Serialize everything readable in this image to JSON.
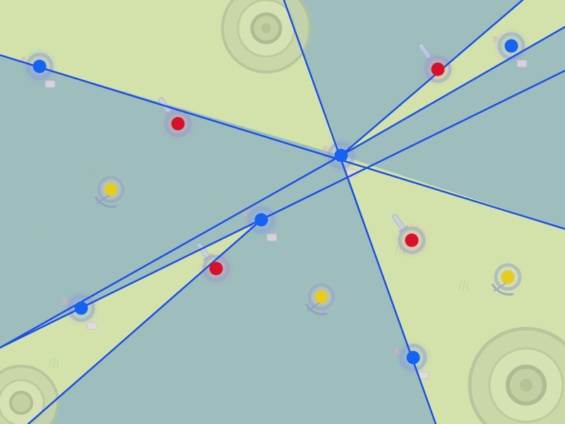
{
  "game": {
    "colors": {
      "light_zone": "#d3e2aa",
      "dark_zone": "#9ebdbd",
      "ray_line": "#1a4fe8",
      "node_blue": "#1463f2",
      "unit_red": "#d8102a",
      "unit_yellow": "#e9cc1a",
      "sprite_tint": "#8f9fd8",
      "grass": "#9fbfae"
    },
    "icons": [
      "round-stone-pad-icon",
      "sword-icon",
      "crossbow-icon",
      "scroll-icon",
      "shield-icon"
    ],
    "units": {
      "blue": [
        "mage-ally",
        "hub-ally",
        "relay-ally",
        "archer-ally",
        "scout-ally",
        "corner-ally"
      ],
      "red": [
        "swordsman-enemy",
        "raider-enemy",
        "knight-enemy",
        "brute-enemy"
      ],
      "yellow": [
        "crossbow-neutral-west",
        "crossbow-neutral-center",
        "crossbow-neutral-east"
      ]
    }
  }
}
